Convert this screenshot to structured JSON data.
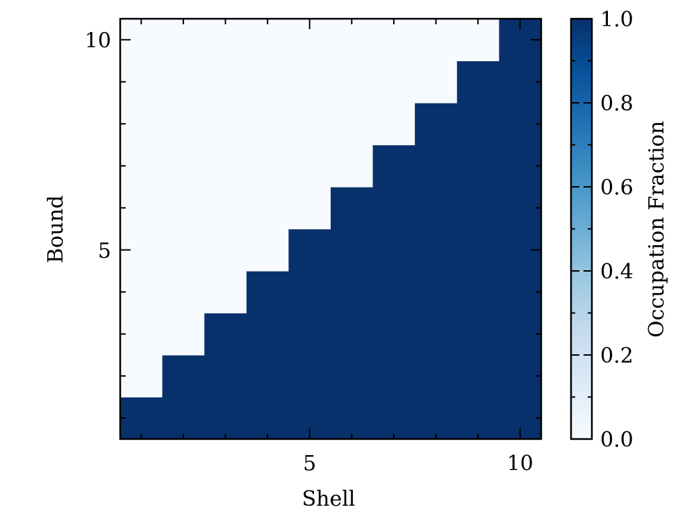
{
  "chart_data": {
    "type": "heatmap",
    "xlabel": "Shell",
    "ylabel": "Bound",
    "x": [
      1,
      2,
      3,
      4,
      5,
      6,
      7,
      8,
      9,
      10
    ],
    "y": [
      1,
      2,
      3,
      4,
      5,
      6,
      7,
      8,
      9,
      10
    ],
    "xlim": [
      0.5,
      10.5
    ],
    "ylim": [
      0.5,
      10.5
    ],
    "values": [
      [
        1,
        1,
        1,
        1,
        1,
        1,
        1,
        1,
        1,
        1
      ],
      [
        0,
        1,
        1,
        1,
        1,
        1,
        1,
        1,
        1,
        1
      ],
      [
        0,
        0,
        1,
        1,
        1,
        1,
        1,
        1,
        1,
        1
      ],
      [
        0,
        0,
        0,
        1,
        1,
        1,
        1,
        1,
        1,
        1
      ],
      [
        0,
        0,
        0,
        0,
        1,
        1,
        1,
        1,
        1,
        1
      ],
      [
        0,
        0,
        0,
        0,
        0,
        1,
        1,
        1,
        1,
        1
      ],
      [
        0,
        0,
        0,
        0,
        0,
        0,
        1,
        1,
        1,
        1
      ],
      [
        0,
        0,
        0,
        0,
        0,
        0,
        0,
        1,
        1,
        1
      ],
      [
        0,
        0,
        0,
        0,
        0,
        0,
        0,
        0,
        1,
        1
      ],
      [
        0,
        0,
        0,
        0,
        0,
        0,
        0,
        0,
        0,
        1
      ]
    ],
    "x_ticks": [
      5,
      10
    ],
    "y_ticks": [
      5,
      10
    ],
    "x_tick_labels": [
      "5",
      "10"
    ],
    "y_tick_labels": [
      "5",
      "10"
    ],
    "colorbar": {
      "label": "Occupation Fraction",
      "range": [
        0.0,
        1.0
      ],
      "ticks": [
        0.0,
        0.2,
        0.4,
        0.6,
        0.8,
        1.0
      ],
      "tick_labels": [
        "0.0",
        "0.2",
        "0.4",
        "0.6",
        "0.8",
        "1.0"
      ],
      "colormap": "Blues",
      "low_color": "#f7fbff",
      "high_color": "#08306b"
    },
    "grid": false
  }
}
